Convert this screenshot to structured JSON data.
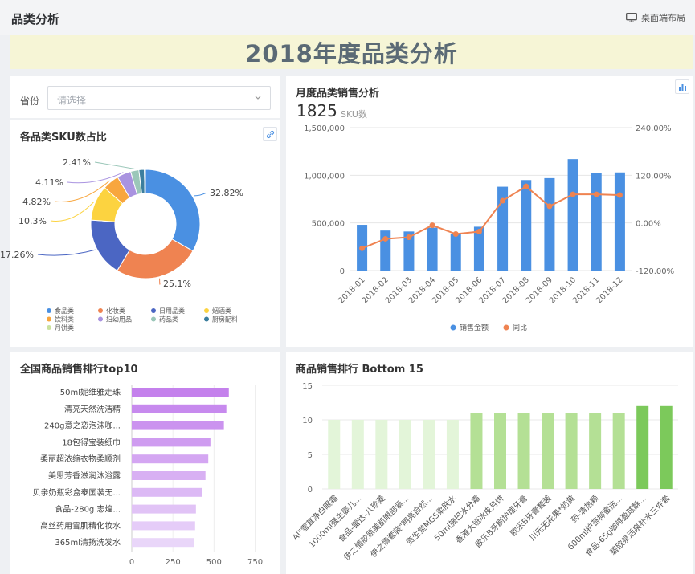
{
  "header": {
    "title": "品类分析",
    "layout_label": "桌面端布局",
    "layout_icon": "monitor-icon"
  },
  "banner": {
    "title": "2018年度品类分析"
  },
  "filter": {
    "label": "省份",
    "placeholder": "请选择",
    "icon": "chevron-down-icon"
  },
  "donut_panel": {
    "title": "各品类SKU数占比",
    "icon": "link-icon"
  },
  "monthly_panel": {
    "title": "月度品类销售分析",
    "kpi_value": "1825",
    "kpi_label": "SKU数",
    "icon": "chart-export-icon"
  },
  "top10_panel": {
    "title": "全国商品销售排行top10"
  },
  "bottom15_panel": {
    "title": "商品销售排行 Bottom 15"
  },
  "colors": {
    "blue": "#4a90e2",
    "orange": "#ef8351",
    "purple": "#c98de9"
  },
  "chart_data": [
    {
      "type": "pie",
      "title": "各品类SKU数占比",
      "labels": [
        "食品类",
        "化妆类",
        "日用品类",
        "烟酒类",
        "饮料类",
        "妇幼用品",
        "药品类",
        "厨房配料",
        "月饼类"
      ],
      "values": [
        32.82,
        25.1,
        17.26,
        10.3,
        4.82,
        4.11,
        2.41,
        1.6,
        0.3
      ],
      "data_labels": [
        "32.82%",
        "25.1%",
        "17.26%",
        "10.3%",
        "4.82%",
        "4.11%",
        "2.41%",
        "",
        ""
      ],
      "colors": [
        "#4a90e2",
        "#ef8351",
        "#4b66c3",
        "#fcd340",
        "#f8a63e",
        "#a993e0",
        "#9bc7b9",
        "#3b7e9e",
        "#cbe29f"
      ],
      "legend_position": "bottom"
    },
    {
      "type": "bar",
      "title": "月度品类销售分析",
      "categories": [
        "2018-01",
        "2018-02",
        "2018-03",
        "2018-04",
        "2018-05",
        "2018-06",
        "2018-07",
        "2018-08",
        "2018-09",
        "2018-10",
        "2018-11",
        "2018-12"
      ],
      "series": [
        {
          "name": "销售金额",
          "type": "bar",
          "axis": "left",
          "color": "#4a90e2",
          "values": [
            480000,
            420000,
            410000,
            450000,
            380000,
            460000,
            880000,
            950000,
            970000,
            1170000,
            1020000,
            1030000
          ]
        },
        {
          "name": "同比",
          "type": "line",
          "axis": "right",
          "color": "#ef8351",
          "values": [
            -64,
            -40,
            -36,
            -6,
            -28,
            -22,
            56,
            92,
            42,
            72,
            72,
            70
          ]
        }
      ],
      "ylim": [
        0,
        1500000
      ],
      "y_ticks": [
        "0",
        "500,000",
        "1,000,000",
        "1,500,000"
      ],
      "y2lim": [
        -120,
        240
      ],
      "y2_ticks": [
        "-120.00%",
        "0.00%",
        "120.00%",
        "240.00%"
      ],
      "legend_position": "bottom"
    },
    {
      "type": "bar",
      "orientation": "horizontal",
      "title": "全国商品销售排行top10",
      "categories": [
        "50ml妮维雅走珠",
        "清亮天然洗洁精",
        "240g意之恋泡沫咖...",
        "18包得宝装纸巾",
        "柔丽超浓缩衣物柔顺剂",
        "美思芳香滋润沐浴露",
        "贝亲奶瓶彩盒泰国装无...",
        "食品-280g 志煌...",
        "高丝药用雪肌精化妆水",
        "365ml清扬洗发水"
      ],
      "values": [
        590,
        575,
        560,
        478,
        465,
        448,
        425,
        390,
        385,
        380
      ],
      "x_ticks": [
        "0",
        "250",
        "500",
        "750"
      ],
      "xlim": [
        0,
        850
      ],
      "colors": [
        "#c481ec",
        "#c78aee",
        "#cb93ef",
        "#cf9cf0",
        "#d4a6f2",
        "#d8b0f3",
        "#dcb9f5",
        "#e1c3f6",
        "#e5ccf8",
        "#e9d6f9"
      ]
    },
    {
      "type": "bar",
      "title": "商品销售排行 Bottom 15",
      "categories": [
        "AI\"雪茸净白眼霜",
        "1000ml强生婴儿...",
        "食品-雷达-八珍菱",
        "伊之情胶原美肌眼部紧...",
        "伊之情套装\"明亮自然...",
        "资生堂MGS柔肤水",
        "50ml施巴水分霜",
        "香港大班冰皮月饼",
        "欧乐B牙刷护理牙膏",
        "欧乐B牙膏套装",
        "川元无花果*奶黄",
        "药-清热颗",
        "600ml护苔柳蜜洗...",
        "食品-65g咖啡盈球酥...",
        "碧欧泉活泉补水三件套"
      ],
      "values": [
        10,
        10,
        10,
        10,
        10,
        10,
        11,
        11,
        11,
        11,
        11,
        11,
        11,
        12,
        12
      ],
      "ylim": [
        0,
        15
      ],
      "y_ticks": [
        "0",
        "5",
        "10",
        "15"
      ],
      "colors": [
        "#e3f5d9",
        "#e3f5d9",
        "#e3f5d9",
        "#e3f5d9",
        "#e3f5d9",
        "#e3f5d9",
        "#b4e095",
        "#b4e095",
        "#b4e095",
        "#b4e095",
        "#b4e095",
        "#b4e095",
        "#b4e095",
        "#7cc95b",
        "#7cc95b"
      ]
    }
  ]
}
